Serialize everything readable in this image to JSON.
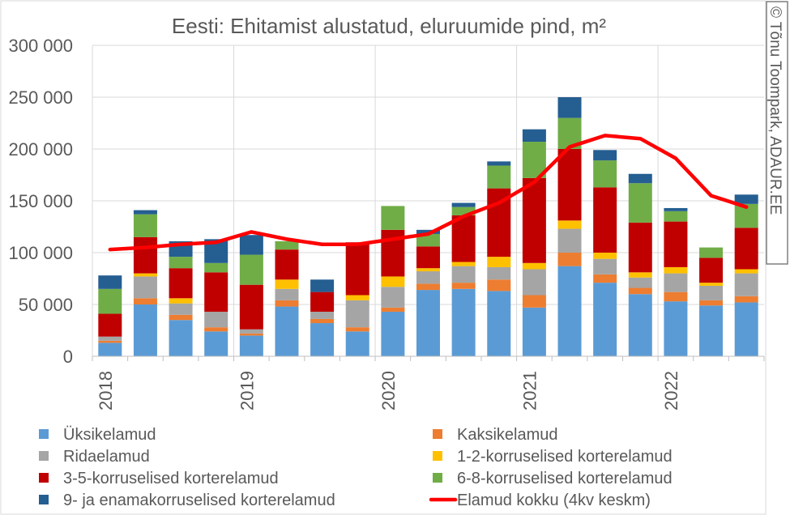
{
  "chart_data": {
    "type": "bar",
    "title": "Eesti: Ehitamist alustatud, eluruumide pind, m²",
    "credit": "© Tõnu Toompark, ADAUR.EE",
    "ylim": [
      0,
      300000
    ],
    "yticks": [
      0,
      50000,
      100000,
      150000,
      200000,
      250000,
      300000
    ],
    "ytick_labels": [
      "0",
      "50 000",
      "100 000",
      "150 000",
      "200 000",
      "250 000",
      "300 000"
    ],
    "year_labels": [
      "2018",
      "2019",
      "2020",
      "2021",
      "2022"
    ],
    "categories": [
      "2018 Q1",
      "2018 Q2",
      "2018 Q3",
      "2018 Q4",
      "2019 Q1",
      "2019 Q2",
      "2019 Q3",
      "2019 Q4",
      "2020 Q1",
      "2020 Q2",
      "2020 Q3",
      "2020 Q4",
      "2021 Q1",
      "2021 Q2",
      "2021 Q3",
      "2021 Q4",
      "2022 Q1",
      "2022 Q2",
      "2022 Q3"
    ],
    "grid": true,
    "legend_position": "bottom",
    "series": [
      {
        "name": "Üksikelamud",
        "color": "#5b9bd5",
        "values": [
          13000,
          50000,
          35000,
          24000,
          20000,
          48000,
          32000,
          24000,
          43000,
          64000,
          65000,
          63000,
          47000,
          87000,
          71000,
          60000,
          53000,
          49000,
          52000
        ]
      },
      {
        "name": "Kaksikelamud",
        "color": "#ed7d31",
        "values": [
          2000,
          6000,
          5000,
          4000,
          2000,
          6000,
          4000,
          4000,
          4000,
          6000,
          6000,
          11000,
          12000,
          13000,
          8000,
          6000,
          9000,
          5000,
          6000
        ]
      },
      {
        "name": "Ridaelamud",
        "color": "#a5a5a5",
        "values": [
          4000,
          21000,
          11000,
          15000,
          4000,
          11000,
          7000,
          26000,
          20000,
          12000,
          16000,
          12000,
          25000,
          23000,
          15000,
          10000,
          18000,
          14000,
          22000
        ]
      },
      {
        "name": "1-2-korruselised korterelamud",
        "color": "#ffc000",
        "values": [
          0,
          3000,
          5000,
          0,
          0,
          9000,
          0,
          5000,
          10000,
          3000,
          4000,
          10000,
          6000,
          8000,
          6000,
          5000,
          6000,
          3000,
          4000
        ]
      },
      {
        "name": "3-5-korruselised korterelamud",
        "color": "#c00000",
        "values": [
          22000,
          35000,
          29000,
          38000,
          43000,
          29000,
          19000,
          51000,
          45000,
          21000,
          45000,
          66000,
          82000,
          69000,
          63000,
          48000,
          44000,
          24000,
          40000
        ]
      },
      {
        "name": "6-8-korruselised korterelamud",
        "color": "#70ad47",
        "values": [
          24000,
          22000,
          11000,
          9000,
          29000,
          8000,
          0,
          0,
          23000,
          12000,
          8000,
          22000,
          35000,
          30000,
          26000,
          38000,
          10000,
          10000,
          23000
        ]
      },
      {
        "name": "9- ja enamakorruselised korterelamud",
        "color": "#255e91",
        "values": [
          13000,
          4000,
          15000,
          23000,
          19000,
          0,
          12000,
          0,
          0,
          4000,
          4000,
          4000,
          12000,
          20000,
          10000,
          9000,
          3000,
          0,
          9000
        ]
      }
    ],
    "line": {
      "name": "Elamud kokku (4kv keskm)",
      "color": "#ff0000",
      "values": [
        103000,
        105000,
        108000,
        110000,
        120000,
        113000,
        108000,
        108000,
        113000,
        118000,
        135000,
        148000,
        168000,
        202000,
        213000,
        210000,
        191000,
        155000,
        144000
      ]
    }
  }
}
